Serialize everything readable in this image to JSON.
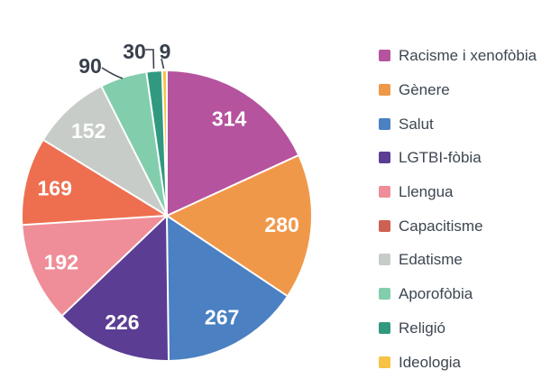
{
  "chart_data": {
    "type": "pie",
    "title": "",
    "legend_position": "right",
    "direction": "clockwise",
    "start_angle_deg": 0,
    "grid": false,
    "inside_label_color": "#ffffff",
    "outside_label_color": "#39404c",
    "items": [
      {
        "label": "Racisme i xenofòbia",
        "value": 314,
        "color": "#b5539e",
        "label_placement": "inside"
      },
      {
        "label": "Gènere",
        "value": 280,
        "color": "#f0984a",
        "label_placement": "inside"
      },
      {
        "label": "Salut",
        "value": 267,
        "color": "#4b80c2",
        "label_placement": "inside"
      },
      {
        "label": "LGTBI-fòbia",
        "value": 226,
        "color": "#5b3d94",
        "label_placement": "inside"
      },
      {
        "label": "Llengua",
        "value": 192,
        "color": "#ef8e98",
        "label_placement": "inside"
      },
      {
        "label": "Capacitisme",
        "value": 169,
        "color": "#ee6f50",
        "legend_color": "#cd6152",
        "label_placement": "inside"
      },
      {
        "label": "Edatisme",
        "value": 152,
        "color": "#c7ccc8",
        "label_placement": "inside"
      },
      {
        "label": "Aporofòbia",
        "value": 90,
        "color": "#82ceac",
        "label_placement": "outside"
      },
      {
        "label": "Religió",
        "value": 30,
        "color": "#31997f",
        "label_placement": "outside"
      },
      {
        "label": "Ideologia",
        "value": 9,
        "color": "#f6c345",
        "label_placement": "outside"
      }
    ]
  }
}
